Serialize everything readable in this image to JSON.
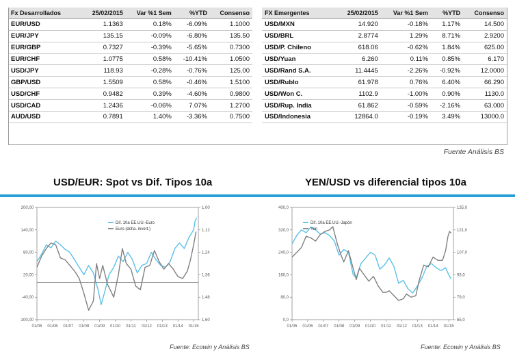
{
  "table_developed": {
    "headers": [
      "Fx Desarrollados",
      "25/02/2015",
      "Var %1 Sem",
      "%YTD",
      "Consenso"
    ],
    "rows": [
      [
        "EUR/USD",
        "1.1363",
        "0.18%",
        "-6.09%",
        "1.1000"
      ],
      [
        "EUR/JPY",
        "135.15",
        "-0.09%",
        "-6.80%",
        "135.50"
      ],
      [
        "EUR/GBP",
        "0.7327",
        "-0.39%",
        "-5.65%",
        "0.7300"
      ],
      [
        "EUR/CHF",
        "1.0775",
        "0.58%",
        "-10.41%",
        "1.0500"
      ],
      [
        "USD/JPY",
        "118.93",
        "-0.28%",
        "-0.76%",
        "125.00"
      ],
      [
        "GBP/USD",
        "1.5509",
        "0.58%",
        "-0.46%",
        "1.5100"
      ],
      [
        "USD/CHF",
        "0.9482",
        "0.39%",
        "-4.60%",
        "0.9800"
      ],
      [
        "USD/CAD",
        "1.2436",
        "-0.06%",
        "7.07%",
        "1.2700"
      ],
      [
        "AUD/USD",
        "0.7891",
        "1.40%",
        "-3.36%",
        "0.7500"
      ]
    ]
  },
  "table_emerging": {
    "headers": [
      "FX Emergentes",
      "25/02/2015",
      "Var %1 Sem",
      "%YTD",
      "Consenso"
    ],
    "rows": [
      [
        "USD/MXN",
        "14.920",
        "-0.18%",
        "1.17%",
        "14.500"
      ],
      [
        "USD/BRL",
        "2.8774",
        "1.29%",
        "8.71%",
        "2.9200"
      ],
      [
        "USD/P. Chileno",
        "618.06",
        "-0.62%",
        "1.84%",
        "625.00"
      ],
      [
        "USD/Yuan",
        "6.260",
        "0.11%",
        "0.85%",
        "6.170"
      ],
      [
        "USD/Rand S.A.",
        "11.4445",
        "-2.26%",
        "-0.92%",
        "12.0000"
      ],
      [
        "USD/Rublo",
        "61.978",
        "0.76%",
        "6.40%",
        "66.290"
      ],
      [
        "USD/Won C.",
        "1102.9",
        "-1.00%",
        "0.90%",
        "1130.0"
      ],
      [
        "USD/Rup. India",
        "61.862",
        "-0.59%",
        "-2.16%",
        "63.000"
      ],
      [
        "USD/Indonesia",
        "12864.0",
        "-0.19%",
        "3.49%",
        "13000.0"
      ]
    ]
  },
  "source_table": "Fuente Análisis BS",
  "colors": {
    "accent_blue": "#2a9fd6",
    "series_blue": "#5bc0e8",
    "series_gray": "#808080"
  },
  "chart_data": [
    {
      "type": "line",
      "title": "USD/EUR: Spot vs Dif. Tipos 10a",
      "source": "Fuente: Ecowin y Análisis BS",
      "x": [
        "01/05",
        "01/06",
        "01/07",
        "01/08",
        "01/09",
        "01/10",
        "01/11",
        "01/12",
        "01/13",
        "01/14",
        "01/15"
      ],
      "x_range": [
        2005.0,
        2015.3
      ],
      "y_left": {
        "range": [
          -100,
          200
        ],
        "ticks": [
          -100,
          -40,
          20,
          80,
          140,
          200
        ],
        "tick_labels": [
          "-100,00",
          "-40,00",
          "20,00",
          "80,00",
          "140,00",
          "200,00"
        ]
      },
      "y_right": {
        "range": [
          1.0,
          1.6
        ],
        "inverted": true,
        "ticks": [
          1.0,
          1.12,
          1.24,
          1.36,
          1.48,
          1.6
        ],
        "tick_labels": [
          "1,00",
          "1,12",
          "1,24",
          "1,36",
          "1,48",
          "1,60"
        ]
      },
      "zero_line": 0,
      "legend_position": "top-right",
      "series": [
        {
          "name": "Dif. 10a EE.UU.-Euro",
          "axis": "left",
          "color": "#5bc0e8",
          "points": [
            [
              2005.0,
              55
            ],
            [
              2005.3,
              75
            ],
            [
              2005.6,
              100
            ],
            [
              2005.9,
              92
            ],
            [
              2006.2,
              110
            ],
            [
              2006.5,
              100
            ],
            [
              2006.8,
              88
            ],
            [
              2007.1,
              80
            ],
            [
              2007.4,
              60
            ],
            [
              2007.7,
              40
            ],
            [
              2008.0,
              20
            ],
            [
              2008.3,
              45
            ],
            [
              2008.6,
              25
            ],
            [
              2008.9,
              -20
            ],
            [
              2009.1,
              -60
            ],
            [
              2009.3,
              -30
            ],
            [
              2009.6,
              20
            ],
            [
              2009.9,
              40
            ],
            [
              2010.2,
              70
            ],
            [
              2010.5,
              55
            ],
            [
              2010.8,
              80
            ],
            [
              2011.1,
              60
            ],
            [
              2011.4,
              25
            ],
            [
              2011.7,
              45
            ],
            [
              2012.0,
              50
            ],
            [
              2012.3,
              80
            ],
            [
              2012.6,
              60
            ],
            [
              2012.9,
              45
            ],
            [
              2013.2,
              40
            ],
            [
              2013.5,
              55
            ],
            [
              2013.8,
              90
            ],
            [
              2014.1,
              105
            ],
            [
              2014.4,
              90
            ],
            [
              2014.7,
              120
            ],
            [
              2015.0,
              140
            ],
            [
              2015.1,
              165
            ],
            [
              2015.2,
              172
            ]
          ]
        },
        {
          "name": "Euro (dcha. invert.)",
          "axis": "right",
          "color": "#808080",
          "points": [
            [
              2005.0,
              1.32
            ],
            [
              2005.3,
              1.26
            ],
            [
              2005.6,
              1.22
            ],
            [
              2005.9,
              1.19
            ],
            [
              2006.2,
              1.2
            ],
            [
              2006.5,
              1.27
            ],
            [
              2006.8,
              1.28
            ],
            [
              2007.1,
              1.31
            ],
            [
              2007.4,
              1.34
            ],
            [
              2007.7,
              1.38
            ],
            [
              2008.0,
              1.46
            ],
            [
              2008.3,
              1.55
            ],
            [
              2008.6,
              1.5
            ],
            [
              2008.8,
              1.3
            ],
            [
              2009.0,
              1.38
            ],
            [
              2009.2,
              1.31
            ],
            [
              2009.5,
              1.41
            ],
            [
              2009.9,
              1.48
            ],
            [
              2010.2,
              1.36
            ],
            [
              2010.45,
              1.22
            ],
            [
              2010.7,
              1.3
            ],
            [
              2011.0,
              1.33
            ],
            [
              2011.3,
              1.42
            ],
            [
              2011.6,
              1.44
            ],
            [
              2011.9,
              1.32
            ],
            [
              2012.2,
              1.31
            ],
            [
              2012.5,
              1.23
            ],
            [
              2012.8,
              1.29
            ],
            [
              2013.1,
              1.33
            ],
            [
              2013.4,
              1.3
            ],
            [
              2013.7,
              1.33
            ],
            [
              2014.0,
              1.37
            ],
            [
              2014.3,
              1.38
            ],
            [
              2014.6,
              1.34
            ],
            [
              2014.8,
              1.28
            ],
            [
              2015.0,
              1.2
            ],
            [
              2015.15,
              1.13
            ]
          ]
        }
      ]
    },
    {
      "type": "line",
      "title": "YEN/USD vs diferencial tipos 10a",
      "source": "Fuente: Ecowin y Análisis BS",
      "x": [
        "01/05",
        "01/06",
        "01/07",
        "01/08",
        "01/09",
        "01/10",
        "01/11",
        "01/12",
        "01/13",
        "01/14",
        "01/15"
      ],
      "x_range": [
        2005.0,
        2015.3
      ],
      "y_left": {
        "range": [
          0,
          400
        ],
        "ticks": [
          0,
          80,
          160,
          240,
          320,
          400
        ],
        "tick_labels": [
          "0,0",
          "80,0",
          "160,0",
          "240,0",
          "320,0",
          "400,0"
        ]
      },
      "y_right": {
        "range": [
          65,
          135
        ],
        "inverted": false,
        "ticks": [
          65,
          79,
          93,
          107,
          121,
          135
        ],
        "tick_labels": [
          "65,0",
          "79,0",
          "93,0",
          "107,0",
          "121,0",
          "135,0"
        ]
      },
      "legend_position": "top-left",
      "series": [
        {
          "name": "Dif. 10a EE.UU.-Japón",
          "axis": "left",
          "color": "#5bc0e8",
          "points": [
            [
              2005.0,
              270
            ],
            [
              2005.3,
              300
            ],
            [
              2005.6,
              320
            ],
            [
              2005.9,
              310
            ],
            [
              2006.2,
              330
            ],
            [
              2006.5,
              320
            ],
            [
              2006.8,
              305
            ],
            [
              2007.1,
              310
            ],
            [
              2007.4,
              300
            ],
            [
              2007.7,
              280
            ],
            [
              2008.0,
              230
            ],
            [
              2008.3,
              250
            ],
            [
              2008.6,
              240
            ],
            [
              2008.9,
              160
            ],
            [
              2009.1,
              150
            ],
            [
              2009.4,
              200
            ],
            [
              2009.7,
              220
            ],
            [
              2010.0,
              240
            ],
            [
              2010.3,
              230
            ],
            [
              2010.6,
              180
            ],
            [
              2010.9,
              195
            ],
            [
              2011.2,
              220
            ],
            [
              2011.5,
              190
            ],
            [
              2011.8,
              130
            ],
            [
              2012.1,
              140
            ],
            [
              2012.4,
              110
            ],
            [
              2012.7,
              95
            ],
            [
              2013.0,
              120
            ],
            [
              2013.3,
              150
            ],
            [
              2013.6,
              190
            ],
            [
              2013.9,
              200
            ],
            [
              2014.2,
              185
            ],
            [
              2014.5,
              175
            ],
            [
              2014.8,
              185
            ],
            [
              2015.0,
              160
            ],
            [
              2015.15,
              145
            ]
          ]
        },
        {
          "name": "Yen",
          "axis": "right",
          "color": "#808080",
          "points": [
            [
              2005.0,
              104
            ],
            [
              2005.3,
              107
            ],
            [
              2005.6,
              110
            ],
            [
              2005.9,
              117
            ],
            [
              2006.2,
              116
            ],
            [
              2006.5,
              114
            ],
            [
              2006.8,
              118
            ],
            [
              2007.1,
              120
            ],
            [
              2007.4,
              121
            ],
            [
              2007.6,
              123
            ],
            [
              2007.9,
              112
            ],
            [
              2008.1,
              106
            ],
            [
              2008.3,
              101
            ],
            [
              2008.6,
              108
            ],
            [
              2008.9,
              97
            ],
            [
              2009.1,
              90
            ],
            [
              2009.3,
              97
            ],
            [
              2009.6,
              93
            ],
            [
              2009.9,
              89
            ],
            [
              2010.2,
              92
            ],
            [
              2010.5,
              86
            ],
            [
              2010.8,
              82
            ],
            [
              2011.0,
              82
            ],
            [
              2011.2,
              83
            ],
            [
              2011.5,
              80
            ],
            [
              2011.8,
              77
            ],
            [
              2012.1,
              78
            ],
            [
              2012.3,
              81
            ],
            [
              2012.6,
              79
            ],
            [
              2012.9,
              80
            ],
            [
              2013.1,
              89
            ],
            [
              2013.4,
              99
            ],
            [
              2013.7,
              98
            ],
            [
              2014.0,
              104
            ],
            [
              2014.3,
              102
            ],
            [
              2014.6,
              102
            ],
            [
              2014.8,
              108
            ],
            [
              2014.95,
              117
            ],
            [
              2015.05,
              120
            ],
            [
              2015.15,
              119
            ]
          ]
        }
      ]
    }
  ]
}
